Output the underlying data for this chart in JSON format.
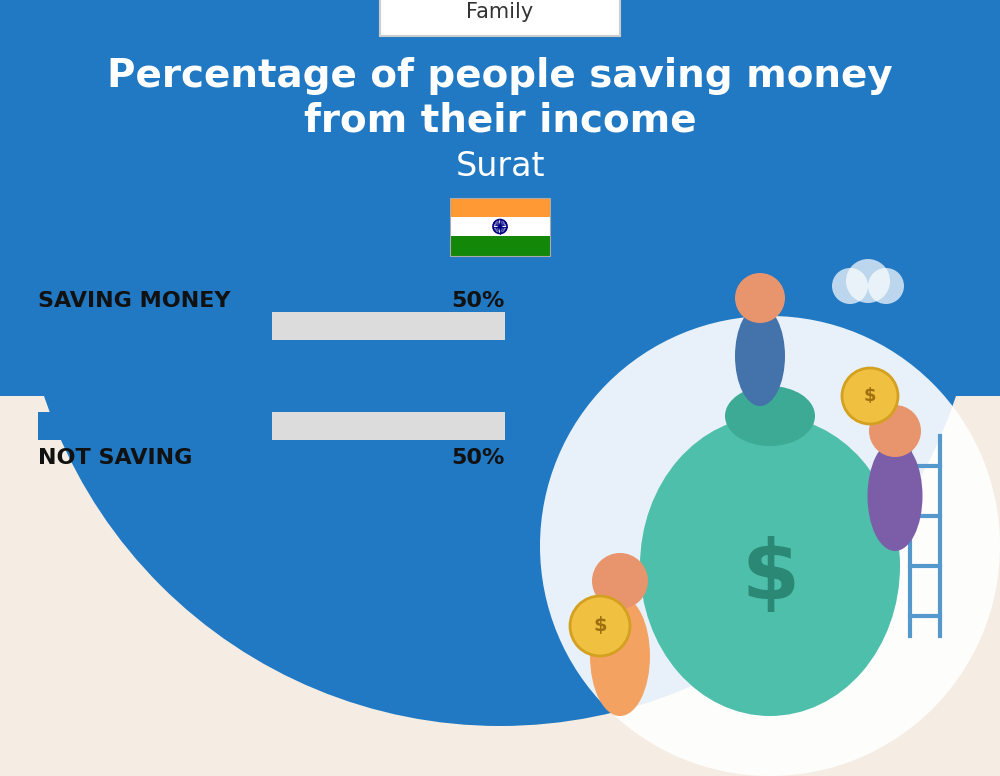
{
  "title_line1": "Percentage of people saving money",
  "title_line2": "from their income",
  "subtitle": "Surat",
  "category_label": "Family",
  "bg_top_color": "#2179C4",
  "bg_bottom_color": "#F5EDE3",
  "title_color": "#FFFFFF",
  "subtitle_color": "#FFFFFF",
  "label_color": "#111111",
  "bar_active_color": "#2179C4",
  "bar_bg_color": "#DCDCDC",
  "bars": [
    {
      "label": "SAVING MONEY",
      "value": 50,
      "label_above": true
    },
    {
      "label": "NOT SAVING",
      "value": 50,
      "label_above": false
    }
  ],
  "figsize": [
    10.0,
    7.76
  ],
  "dpi": 100,
  "flag_orange": "#FF9933",
  "flag_white": "#FFFFFF",
  "flag_green": "#138808",
  "flag_navy": "#000080"
}
